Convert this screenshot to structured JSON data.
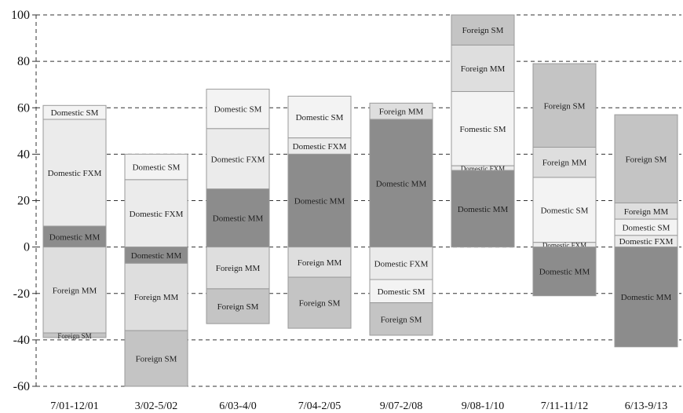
{
  "chart_data": {
    "type": "bar",
    "stacked": true,
    "ylim": [
      -60,
      100
    ],
    "yticks": [
      -60,
      -40,
      -20,
      0,
      20,
      40,
      60,
      80,
      100
    ],
    "grid": "horizontal dashed",
    "categories": [
      {
        "label": "7/01-12/01",
        "segments": [
          {
            "name": "Domestic SM",
            "from": 55,
            "to": 61,
            "color": "#f3f3f3"
          },
          {
            "name": "Domestic FXM",
            "from": 9,
            "to": 55,
            "color": "#ebebeb"
          },
          {
            "name": "Domestic MM",
            "from": 0,
            "to": 9,
            "color": "#8c8c8c"
          },
          {
            "name": "Foreign MM",
            "from": -37,
            "to": 0,
            "color": "#dedede"
          },
          {
            "name": "Foreign SM",
            "from": -39,
            "to": -37,
            "color": "#c4c4c4"
          }
        ]
      },
      {
        "label": "3/02-5/02",
        "segments": [
          {
            "name": "Domestic SM",
            "from": 29,
            "to": 40,
            "color": "#f3f3f3"
          },
          {
            "name": "Domestic FXM",
            "from": 0,
            "to": 29,
            "color": "#ebebeb"
          },
          {
            "name": "Domestic MM",
            "from": -7,
            "to": 0,
            "color": "#8c8c8c"
          },
          {
            "name": "Foreign MM",
            "from": -36,
            "to": -7,
            "color": "#dedede"
          },
          {
            "name": "Foreign SM",
            "from": -60,
            "to": -36,
            "color": "#c4c4c4"
          }
        ]
      },
      {
        "label": "6/03-4/0",
        "segments": [
          {
            "name": "Domestic SM",
            "from": 51,
            "to": 68,
            "color": "#f3f3f3"
          },
          {
            "name": "Domestic FXM",
            "from": 25,
            "to": 51,
            "color": "#ebebeb"
          },
          {
            "name": "Domestic MM",
            "from": 0,
            "to": 25,
            "color": "#8c8c8c"
          },
          {
            "name": "Foreign MM",
            "from": -18,
            "to": 0,
            "color": "#dedede"
          },
          {
            "name": "Foreign SM",
            "from": -33,
            "to": -18,
            "color": "#c4c4c4"
          }
        ]
      },
      {
        "label": "7/04-2/05",
        "segments": [
          {
            "name": "Domestic SM",
            "from": 47,
            "to": 65,
            "color": "#f3f3f3"
          },
          {
            "name": "Domestic FXM",
            "from": 40,
            "to": 47,
            "color": "#ebebeb"
          },
          {
            "name": "Domestic MM",
            "from": 0,
            "to": 40,
            "color": "#8c8c8c"
          },
          {
            "name": "Foreign MM",
            "from": -13,
            "to": 0,
            "color": "#dedede"
          },
          {
            "name": "Foreign SM",
            "from": -35,
            "to": -13,
            "color": "#c4c4c4"
          }
        ]
      },
      {
        "label": "9/07-2/08",
        "segments": [
          {
            "name": "Foreign MM",
            "from": 55,
            "to": 62,
            "color": "#dedede"
          },
          {
            "name": "Domestic MM",
            "from": 0,
            "to": 55,
            "color": "#8c8c8c"
          },
          {
            "name": "Domestic FXM",
            "from": -14,
            "to": 0,
            "color": "#ebebeb"
          },
          {
            "name": "Domestic SM",
            "from": -24,
            "to": -14,
            "color": "#f3f3f3"
          },
          {
            "name": "Foreign SM",
            "from": -38,
            "to": -24,
            "color": "#c4c4c4"
          }
        ]
      },
      {
        "label": "9/08-1/10",
        "segments": [
          {
            "name": "Foreign SM",
            "from": 87,
            "to": 100,
            "color": "#c4c4c4"
          },
          {
            "name": "Foreign MM",
            "from": 67,
            "to": 87,
            "color": "#dedede"
          },
          {
            "name": "Fomestic SM",
            "from": 35,
            "to": 67,
            "color": "#f3f3f3"
          },
          {
            "name": "Domestic FXM",
            "from": 33,
            "to": 35,
            "color": "#ebebeb"
          },
          {
            "name": "Domestic MM",
            "from": 0,
            "to": 33,
            "color": "#8c8c8c"
          }
        ]
      },
      {
        "label": "7/11-11/12",
        "segments": [
          {
            "name": "Foreign SM",
            "from": 43,
            "to": 79,
            "color": "#c4c4c4"
          },
          {
            "name": "Foreign MM",
            "from": 30,
            "to": 43,
            "color": "#dedede"
          },
          {
            "name": "Domestic SM",
            "from": 2,
            "to": 30,
            "color": "#f3f3f3"
          },
          {
            "name": "Domestic FXM",
            "from": 0,
            "to": 2,
            "color": "#ebebeb"
          },
          {
            "name": "Domestic MM",
            "from": -21,
            "to": 0,
            "color": "#8c8c8c"
          }
        ]
      },
      {
        "label": "6/13-9/13",
        "segments": [
          {
            "name": "Foreign SM",
            "from": 19,
            "to": 57,
            "color": "#c4c4c4"
          },
          {
            "name": "Foreign MM",
            "from": 12,
            "to": 19,
            "color": "#dedede"
          },
          {
            "name": "Domestic SM",
            "from": 5,
            "to": 12,
            "color": "#f3f3f3"
          },
          {
            "name": "Domestic FXM",
            "from": 0,
            "to": 5,
            "color": "#ebebeb"
          },
          {
            "name": "Domestic MM",
            "from": -43,
            "to": 0,
            "color": "#8c8c8c"
          }
        ]
      }
    ]
  }
}
